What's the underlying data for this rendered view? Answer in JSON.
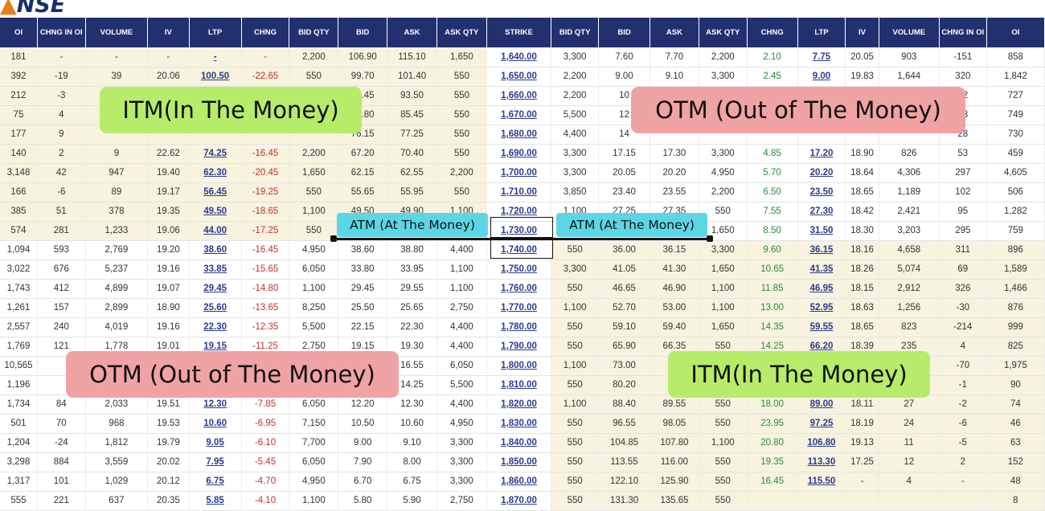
{
  "logo": {
    "text": "NSE"
  },
  "columns": [
    "OI",
    "CHNG IN OI",
    "VOLUME",
    "IV",
    "LTP",
    "CHNG",
    "BID QTY",
    "BID",
    "ASK",
    "ASK QTY",
    "STRIKE",
    "BID QTY",
    "BID",
    "ASK",
    "ASK QTY",
    "CHNG",
    "LTP",
    "IV",
    "VOLUME",
    "CHNG IN OI",
    "OI"
  ],
  "rows": [
    [
      "181",
      "-",
      "-",
      "-",
      "-",
      "-",
      "2,200",
      "106.90",
      "115.10",
      "1,650",
      "1,640.00",
      "3,300",
      "7.60",
      "7.70",
      "2,200",
      "2.10",
      "7.75",
      "20.05",
      "903",
      "-151",
      "858"
    ],
    [
      "392",
      "-19",
      "39",
      "20.06",
      "100.50",
      "-22.65",
      "550",
      "99.70",
      "101.40",
      "550",
      "1,650.00",
      "2,200",
      "9.00",
      "9.10",
      "3,300",
      "2.45",
      "9.00",
      "19.83",
      "1,644",
      "320",
      "1,842"
    ],
    [
      "212",
      "-3",
      "",
      "",
      "",
      "",
      "",
      "91.45",
      "93.50",
      "550",
      "1,660.00",
      "2,200",
      "10",
      "",
      "",
      "",
      "",
      "",
      "",
      "82",
      "727"
    ],
    [
      "75",
      "4",
      "",
      "",
      "",
      "",
      "",
      "82.80",
      "85.45",
      "550",
      "1,670.00",
      "5,500",
      "12",
      "",
      "",
      "",
      "",
      "",
      "",
      "73",
      "749"
    ],
    [
      "177",
      "9",
      "",
      "",
      "",
      "",
      "",
      "76.15",
      "77.25",
      "550",
      "1,680.00",
      "4,400",
      "14",
      "",
      "",
      "",
      "",
      "",
      "",
      "28",
      "730"
    ],
    [
      "140",
      "2",
      "9",
      "22.62",
      "74.25",
      "-16.45",
      "2,200",
      "67.20",
      "70.40",
      "550",
      "1,690.00",
      "3,300",
      "17.15",
      "17.30",
      "3,300",
      "4.85",
      "17.20",
      "18.90",
      "826",
      "53",
      "459"
    ],
    [
      "3,148",
      "42",
      "947",
      "19.40",
      "62.30",
      "-20.45",
      "1,650",
      "62.15",
      "62.55",
      "2,200",
      "1,700.00",
      "3,300",
      "20.05",
      "20.20",
      "4,950",
      "5.70",
      "20.20",
      "18.64",
      "4,306",
      "297",
      "4,605"
    ],
    [
      "166",
      "-6",
      "89",
      "19.17",
      "56.45",
      "-19.25",
      "550",
      "55.65",
      "55.95",
      "550",
      "1,710.00",
      "3,850",
      "23.40",
      "23.55",
      "2,200",
      "6.50",
      "23.50",
      "18.65",
      "1,189",
      "102",
      "506"
    ],
    [
      "385",
      "51",
      "378",
      "19.35",
      "49.50",
      "-18.65",
      "1,100",
      "49.50",
      "49.90",
      "1,100",
      "1,720.00",
      "1,100",
      "27.25",
      "27.35",
      "550",
      "7.55",
      "27.30",
      "18.42",
      "2,421",
      "95",
      "1,282"
    ],
    [
      "574",
      "281",
      "1,233",
      "19.06",
      "44.00",
      "-17.25",
      "550",
      "",
      "",
      "",
      "1,730.00",
      "",
      "",
      "",
      "1,650",
      "8.50",
      "31.50",
      "18.30",
      "3,203",
      "295",
      "759"
    ],
    [
      "1,094",
      "593",
      "2,769",
      "19.20",
      "38.60",
      "-16.45",
      "4,950",
      "38.60",
      "38.80",
      "4,400",
      "1,740.00",
      "550",
      "36.00",
      "36.15",
      "3,300",
      "9.60",
      "36.15",
      "18.16",
      "4,658",
      "311",
      "896"
    ],
    [
      "3,022",
      "676",
      "5,237",
      "19.16",
      "33.85",
      "-15.65",
      "6,050",
      "33.80",
      "33.95",
      "1,100",
      "1,750.00",
      "3,300",
      "41.05",
      "41.30",
      "1,650",
      "10.65",
      "41.35",
      "18.26",
      "5,074",
      "69",
      "1,589"
    ],
    [
      "1,743",
      "412",
      "4,899",
      "19.07",
      "29.45",
      "-14.80",
      "1,100",
      "29.45",
      "29.55",
      "1,100",
      "1,760.00",
      "550",
      "46.65",
      "46.90",
      "1,100",
      "11.85",
      "46.95",
      "18.15",
      "2,912",
      "326",
      "1,466"
    ],
    [
      "1,261",
      "157",
      "2,899",
      "18.90",
      "25.60",
      "-13.65",
      "8,250",
      "25.50",
      "25.65",
      "2,750",
      "1,770.00",
      "1,100",
      "52.70",
      "53.00",
      "1,100",
      "13.00",
      "52.95",
      "18.63",
      "1,256",
      "-30",
      "876"
    ],
    [
      "2,557",
      "240",
      "4,019",
      "19.16",
      "22.30",
      "-12.35",
      "5,500",
      "22.15",
      "22.30",
      "4,400",
      "1,780.00",
      "550",
      "59.10",
      "59.40",
      "1,650",
      "14.35",
      "59.55",
      "18.65",
      "823",
      "-214",
      "999"
    ],
    [
      "1,769",
      "121",
      "1,778",
      "19.01",
      "19.15",
      "-11.25",
      "2,750",
      "19.15",
      "19.30",
      "4,400",
      "1,790.00",
      "550",
      "65.90",
      "66.35",
      "550",
      "14.25",
      "66.20",
      "18.39",
      "235",
      "4",
      "825"
    ],
    [
      "10,565",
      "",
      "",
      "",
      "",
      "",
      "",
      "",
      "16.55",
      "6,050",
      "1,800.00",
      "1,100",
      "73.00",
      "",
      "",
      "",
      "",
      "",
      "",
      "-70",
      "1,975"
    ],
    [
      "1,196",
      "",
      "",
      "",
      "",
      "",
      "",
      "",
      "14.25",
      "5,500",
      "1,810.00",
      "550",
      "80.20",
      "",
      "",
      "",
      "",
      "",
      "",
      "-1",
      "90"
    ],
    [
      "1,734",
      "84",
      "2,033",
      "19.51",
      "12.30",
      "-7.85",
      "6,050",
      "12.20",
      "12.30",
      "4,400",
      "1,820.00",
      "1,100",
      "88.40",
      "89.55",
      "550",
      "18.00",
      "89.00",
      "18.11",
      "27",
      "-2",
      "74"
    ],
    [
      "501",
      "70",
      "968",
      "19.53",
      "10.60",
      "-6.95",
      "7,150",
      "10.50",
      "10.60",
      "4,950",
      "1,830.00",
      "550",
      "96.55",
      "98.05",
      "550",
      "23.95",
      "97.25",
      "18.19",
      "24",
      "-6",
      "46"
    ],
    [
      "1,204",
      "-24",
      "1,812",
      "19.79",
      "9.05",
      "-6.10",
      "7,700",
      "9.00",
      "9.10",
      "3,300",
      "1,840.00",
      "550",
      "104.85",
      "107.80",
      "1,100",
      "20.80",
      "106.80",
      "19.13",
      "11",
      "-5",
      "63"
    ],
    [
      "3,298",
      "884",
      "3,559",
      "20.02",
      "7.95",
      "-5.45",
      "6,050",
      "7.90",
      "8.00",
      "3,300",
      "1,850.00",
      "550",
      "113.55",
      "116.00",
      "550",
      "19.35",
      "113.30",
      "17.25",
      "12",
      "2",
      "152"
    ],
    [
      "1,317",
      "101",
      "1,029",
      "20.12",
      "6.75",
      "-4.70",
      "4,950",
      "6.70",
      "6.75",
      "3,300",
      "1,860.00",
      "550",
      "122.10",
      "125.90",
      "550",
      "16.45",
      "115.50",
      "-",
      "4",
      "-",
      "48"
    ],
    [
      "555",
      "221",
      "637",
      "20.35",
      "5.85",
      "-4.10",
      "1,100",
      "5.80",
      "5.90",
      "2,750",
      "1,870.00",
      "550",
      "131.30",
      "135.65",
      "550",
      "",
      "",
      "",
      "",
      "",
      "8"
    ]
  ],
  "atm_strike": "1,730.00",
  "labels": {
    "itm_calls": "ITM(In The Money)",
    "otm_puts": "OTM (Out of The Money)",
    "otm_calls": "OTM (Out of The Money)",
    "itm_puts": "ITM(In The Money)",
    "atm_left": "ATM (At The Money)",
    "atm_right": "ATM (At The Money)"
  },
  "colors": {
    "header_bg": "#22306f",
    "itm_shade": "#f7f3de",
    "link": "#2a3b8f",
    "negative": "#c3302f",
    "positive": "#2a8a3a",
    "label_green": "#b6ec6a",
    "label_pink": "#f0a3a4",
    "label_cyan": "#5cd6e4"
  }
}
